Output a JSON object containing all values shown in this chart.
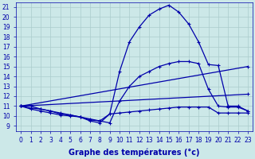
{
  "xlabel": "Graphe des températures (°c)",
  "background_color": "#cce8e8",
  "grid_color": "#aacccc",
  "line_color": "#0000aa",
  "xlim": [
    -0.5,
    23.5
  ],
  "ylim": [
    8.5,
    21.5
  ],
  "yticks": [
    9,
    10,
    11,
    12,
    13,
    14,
    15,
    16,
    17,
    18,
    19,
    20,
    21
  ],
  "xticks": [
    0,
    1,
    2,
    3,
    4,
    5,
    6,
    7,
    8,
    9,
    10,
    11,
    12,
    13,
    14,
    15,
    16,
    17,
    18,
    19,
    20,
    21,
    22,
    23
  ],
  "series": [
    {
      "x": [
        0,
        1,
        2,
        3,
        4,
        5,
        6,
        7,
        8,
        9,
        10,
        11,
        12,
        13,
        14,
        15,
        16,
        17,
        18,
        19,
        20,
        21,
        22,
        23
      ],
      "y": [
        11,
        11,
        10.7,
        10.5,
        10.2,
        10.1,
        9.9,
        9.5,
        9.3,
        10.2,
        14.5,
        17.5,
        19.0,
        20.2,
        20.8,
        21.2,
        20.5,
        19.3,
        17.5,
        15.2,
        15.1,
        11.0,
        11.0,
        10.5
      ]
    },
    {
      "x": [
        0,
        1,
        2,
        3,
        4,
        5,
        6,
        7,
        8,
        9,
        10,
        11,
        12,
        13,
        14,
        15,
        16,
        17,
        18,
        19,
        20,
        21,
        22,
        23
      ],
      "y": [
        11,
        10.8,
        10.7,
        10.5,
        10.3,
        10.1,
        9.9,
        9.6,
        9.5,
        9.3,
        11.5,
        13.0,
        14.0,
        14.5,
        15.0,
        15.3,
        15.5,
        15.5,
        15.3,
        12.7,
        11.0,
        10.9,
        10.9,
        10.5
      ]
    },
    {
      "x": [
        0,
        23
      ],
      "y": [
        11,
        15.0
      ]
    },
    {
      "x": [
        0,
        23
      ],
      "y": [
        11,
        12.2
      ]
    },
    {
      "x": [
        0,
        1,
        2,
        3,
        4,
        5,
        6,
        7,
        8,
        9,
        10,
        11,
        12,
        13,
        14,
        15,
        16,
        17,
        18,
        19,
        20,
        21,
        22,
        23
      ],
      "y": [
        11,
        10.7,
        10.5,
        10.3,
        10.1,
        10.0,
        9.9,
        9.7,
        9.5,
        10.2,
        10.3,
        10.4,
        10.5,
        10.6,
        10.7,
        10.8,
        10.9,
        10.9,
        10.9,
        10.9,
        10.3,
        10.3,
        10.3,
        10.3
      ]
    }
  ],
  "figsize": [
    3.2,
    2.0
  ],
  "dpi": 100,
  "xlabel_fontsize": 7,
  "tick_fontsize": 5.5,
  "linewidth": 0.9,
  "markersize": 3,
  "markeredgewidth": 0.8
}
